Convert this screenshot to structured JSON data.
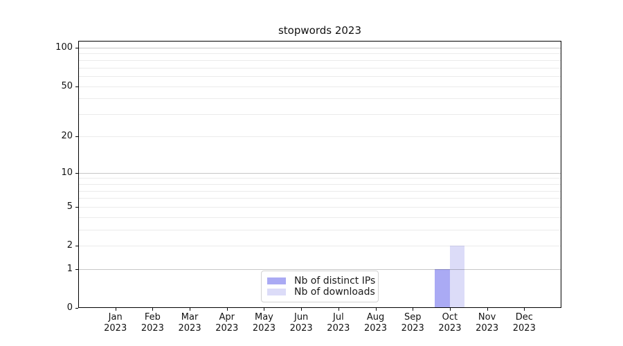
{
  "chart_data": {
    "type": "bar",
    "title": "stopwords 2023",
    "categories": [
      "Jan 2023",
      "Feb 2023",
      "Mar 2023",
      "Apr 2023",
      "May 2023",
      "Jun 2023",
      "Jul 2023",
      "Aug 2023",
      "Sep 2023",
      "Oct 2023",
      "Nov 2023",
      "Dec 2023"
    ],
    "series": [
      {
        "name": "Nb of distinct IPs",
        "color": "#aaaaf4",
        "values": [
          0,
          0,
          0,
          0,
          0,
          0,
          0,
          0,
          0,
          1,
          0,
          0
        ]
      },
      {
        "name": "Nb of downloads",
        "color": "#dcdcf8",
        "values": [
          0,
          0,
          0,
          0,
          0,
          0,
          0,
          0,
          0,
          2,
          0,
          0
        ]
      }
    ],
    "xlabel": "",
    "ylabel": "",
    "yscale": "log1p",
    "ylim": [
      0,
      113
    ],
    "y_ticks": [
      0,
      1,
      2,
      5,
      10,
      20,
      50,
      100
    ],
    "y_major_gridlines": [
      1,
      10,
      100
    ],
    "y_minor_gridlines": [
      2,
      3,
      4,
      5,
      6,
      7,
      8,
      9,
      20,
      30,
      40,
      50,
      60,
      70,
      80,
      90
    ],
    "grid": true,
    "legend_position": "lower center"
  },
  "colors": {
    "background": "#ffffff",
    "axis": "#000000",
    "major_grid": "#c7c7c7",
    "minor_grid": "#ececec",
    "bar_distinct_ips": "#aaaaf4",
    "bar_downloads": "#dcdcf8"
  }
}
